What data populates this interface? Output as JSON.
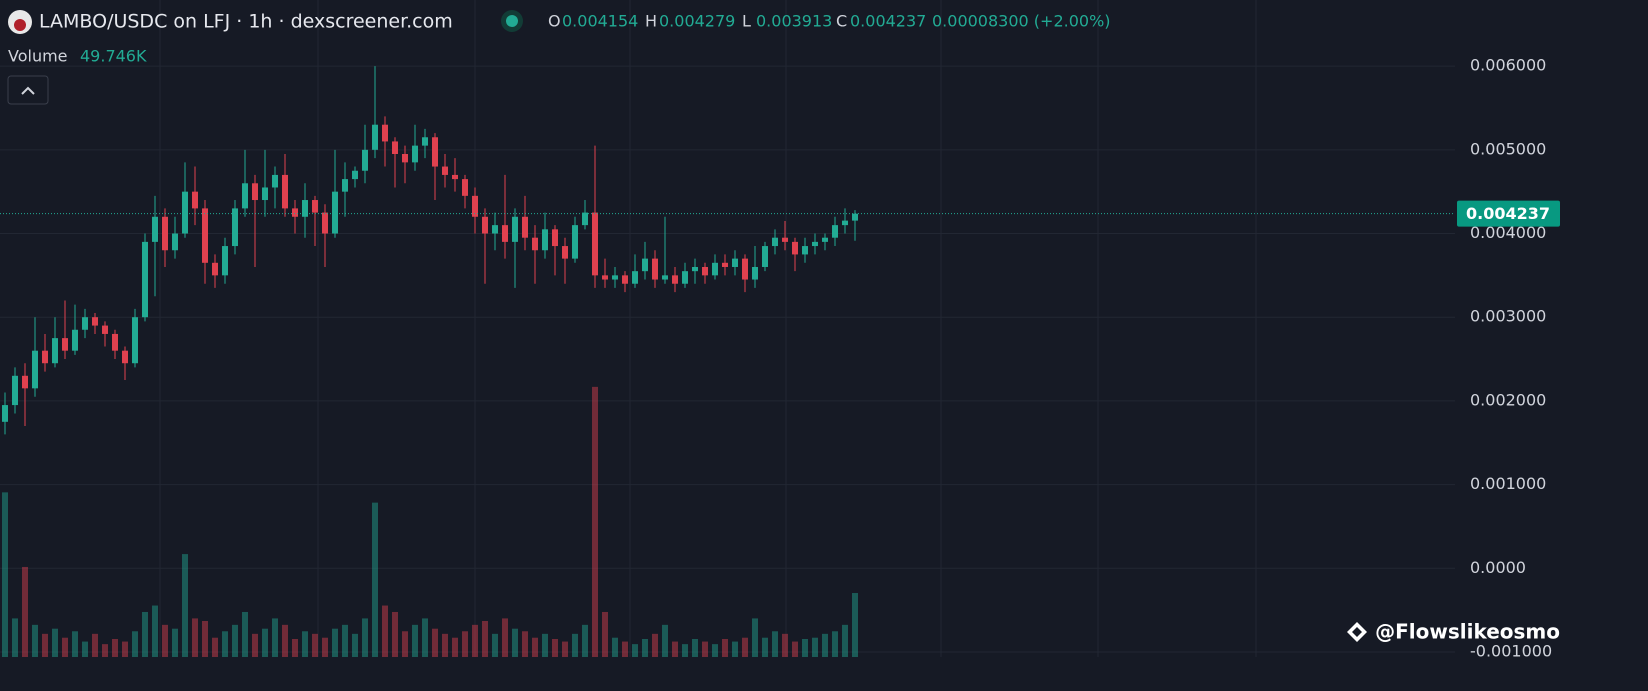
{
  "header": {
    "title": "LAMBO/USDC on LFJ · 1h · dexscreener.com",
    "ohlc": [
      {
        "key": "O",
        "value": "0.004154"
      },
      {
        "key": "H",
        "value": "0.004279"
      },
      {
        "key": "L",
        "value": "0.003913"
      },
      {
        "key": "C",
        "value": "0.004237"
      }
    ],
    "change": "0.00008300 (+2.00%)",
    "volume_label": "Volume",
    "volume_value": "49.746K"
  },
  "watermark": "@Flowslikeosmo",
  "chart_data": {
    "type": "candlestick",
    "open": [
      0.00175,
      0.00195,
      0.0023,
      0.00215,
      0.0026,
      0.00245,
      0.00275,
      0.0026,
      0.00285,
      0.003,
      0.0029,
      0.0028,
      0.0026,
      0.00245,
      0.003,
      0.0039,
      0.0042,
      0.0038,
      0.004,
      0.0045,
      0.0043,
      0.00365,
      0.0035,
      0.00385,
      0.0043,
      0.0046,
      0.0044,
      0.00455,
      0.0047,
      0.0043,
      0.0042,
      0.0044,
      0.00425,
      0.004,
      0.0045,
      0.00465,
      0.00475,
      0.005,
      0.0053,
      0.0051,
      0.00495,
      0.00485,
      0.00505,
      0.00515,
      0.0048,
      0.0047,
      0.00465,
      0.00445,
      0.0042,
      0.004,
      0.0041,
      0.0039,
      0.0042,
      0.00395,
      0.0038,
      0.00405,
      0.00385,
      0.0037,
      0.0041,
      0.00425,
      0.0035,
      0.00345,
      0.0035,
      0.0034,
      0.00355,
      0.0037,
      0.00345,
      0.0035,
      0.0034,
      0.00355,
      0.0036,
      0.0035,
      0.00365,
      0.0036,
      0.0037,
      0.00345,
      0.0036,
      0.00385,
      0.00395,
      0.0039,
      0.00375,
      0.00385,
      0.0039,
      0.00395,
      0.0041,
      0.004154
    ],
    "high": [
      0.0021,
      0.0024,
      0.00245,
      0.003,
      0.0028,
      0.003,
      0.0032,
      0.00315,
      0.0031,
      0.00305,
      0.00295,
      0.00285,
      0.00265,
      0.0031,
      0.004,
      0.00445,
      0.0043,
      0.0042,
      0.00485,
      0.0048,
      0.0044,
      0.00375,
      0.00395,
      0.0044,
      0.005,
      0.0047,
      0.005,
      0.0048,
      0.00495,
      0.0044,
      0.0046,
      0.00445,
      0.00435,
      0.005,
      0.00485,
      0.0048,
      0.0053,
      0.006,
      0.0054,
      0.00515,
      0.00505,
      0.0053,
      0.00525,
      0.0052,
      0.00495,
      0.0049,
      0.0047,
      0.00455,
      0.0043,
      0.00425,
      0.0047,
      0.0043,
      0.00445,
      0.0041,
      0.00425,
      0.0041,
      0.00395,
      0.0042,
      0.0044,
      0.00505,
      0.0037,
      0.0036,
      0.00355,
      0.00375,
      0.0039,
      0.0038,
      0.0042,
      0.0036,
      0.00365,
      0.0037,
      0.00365,
      0.00375,
      0.00375,
      0.0038,
      0.00375,
      0.00385,
      0.0039,
      0.00405,
      0.00415,
      0.00395,
      0.00395,
      0.004,
      0.004,
      0.0042,
      0.0043,
      0.004279
    ],
    "low": [
      0.0016,
      0.00185,
      0.0017,
      0.00205,
      0.00235,
      0.0024,
      0.0025,
      0.00255,
      0.00275,
      0.0028,
      0.00265,
      0.0025,
      0.00225,
      0.0024,
      0.00295,
      0.00325,
      0.0036,
      0.0037,
      0.00395,
      0.0041,
      0.0034,
      0.00335,
      0.0034,
      0.00375,
      0.0042,
      0.0036,
      0.0042,
      0.0043,
      0.0042,
      0.004,
      0.00395,
      0.00385,
      0.0036,
      0.00395,
      0.0042,
      0.00455,
      0.0046,
      0.0049,
      0.0048,
      0.00455,
      0.0046,
      0.00475,
      0.0049,
      0.0044,
      0.00455,
      0.0045,
      0.0043,
      0.004,
      0.0034,
      0.0038,
      0.0037,
      0.00335,
      0.0038,
      0.0034,
      0.0037,
      0.0035,
      0.0034,
      0.00365,
      0.00405,
      0.00335,
      0.00335,
      0.00335,
      0.0033,
      0.00335,
      0.00345,
      0.00335,
      0.0034,
      0.0033,
      0.00335,
      0.0034,
      0.0034,
      0.00345,
      0.0035,
      0.0035,
      0.0033,
      0.00335,
      0.00355,
      0.00375,
      0.0038,
      0.00355,
      0.00365,
      0.00375,
      0.0038,
      0.00385,
      0.004,
      0.003913
    ],
    "close": [
      0.00195,
      0.0023,
      0.00215,
      0.0026,
      0.00245,
      0.00275,
      0.0026,
      0.00285,
      0.003,
      0.0029,
      0.0028,
      0.0026,
      0.00245,
      0.003,
      0.0039,
      0.0042,
      0.0038,
      0.004,
      0.0045,
      0.0043,
      0.00365,
      0.0035,
      0.00385,
      0.0043,
      0.0046,
      0.0044,
      0.00455,
      0.0047,
      0.0043,
      0.0042,
      0.0044,
      0.00425,
      0.004,
      0.0045,
      0.00465,
      0.00475,
      0.005,
      0.0053,
      0.0051,
      0.00495,
      0.00485,
      0.00505,
      0.00515,
      0.0048,
      0.0047,
      0.00465,
      0.00445,
      0.0042,
      0.004,
      0.0041,
      0.0039,
      0.0042,
      0.00395,
      0.0038,
      0.00405,
      0.00385,
      0.0037,
      0.0041,
      0.00425,
      0.0035,
      0.00345,
      0.0035,
      0.0034,
      0.00355,
      0.0037,
      0.00345,
      0.0035,
      0.0034,
      0.00355,
      0.0036,
      0.0035,
      0.00365,
      0.0036,
      0.0037,
      0.00345,
      0.0036,
      0.00385,
      0.00395,
      0.0039,
      0.00375,
      0.00385,
      0.0039,
      0.00395,
      0.0041,
      0.004154,
      0.004237
    ],
    "volume": [
      128,
      30,
      70,
      25,
      18,
      22,
      15,
      20,
      12,
      18,
      10,
      14,
      12,
      20,
      35,
      40,
      25,
      22,
      80,
      30,
      28,
      15,
      20,
      25,
      35,
      18,
      22,
      30,
      25,
      14,
      20,
      18,
      15,
      22,
      25,
      18,
      30,
      120,
      40,
      35,
      20,
      25,
      30,
      22,
      18,
      15,
      20,
      25,
      28,
      18,
      30,
      22,
      20,
      15,
      18,
      14,
      12,
      18,
      25,
      210,
      35,
      15,
      12,
      10,
      14,
      18,
      25,
      12,
      10,
      14,
      12,
      10,
      14,
      12,
      15,
      30,
      15,
      20,
      18,
      12,
      14,
      15,
      18,
      20,
      25,
      49.746
    ],
    "up_color": "#22ab94",
    "down_color": "#e0414f",
    "ylim": [
      -0.00106,
      0.00679
    ],
    "yticks": [
      {
        "value": -0.001,
        "label": "-0.001000"
      },
      {
        "value": 0,
        "label": "0.0000"
      },
      {
        "value": 0.001,
        "label": "0.001000"
      },
      {
        "value": 0.002,
        "label": "0.002000"
      },
      {
        "value": 0.003,
        "label": "0.003000"
      },
      {
        "value": 0.004,
        "label": "0.004000"
      },
      {
        "value": 0.005,
        "label": "0.005000"
      },
      {
        "value": 0.006,
        "label": "0.006000"
      }
    ],
    "volume_lim": [
      0,
      220
    ],
    "grid": true
  }
}
